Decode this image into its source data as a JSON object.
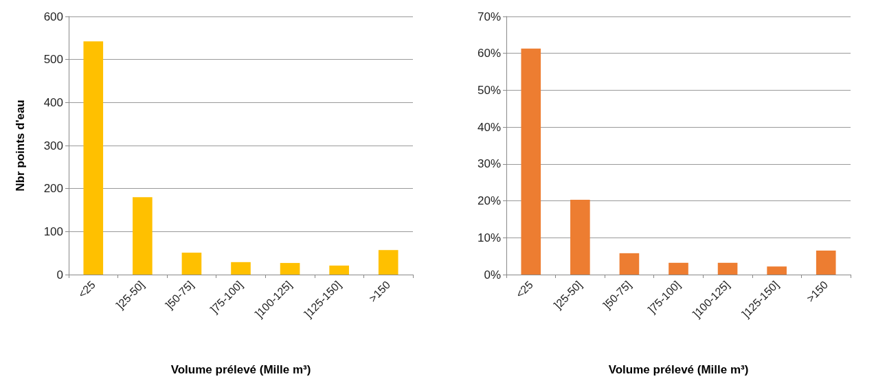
{
  "chart_data": [
    {
      "type": "bar",
      "xlabel": "Volume prélevé (Mille m³)",
      "ylabel": "Nbr points d'eau",
      "categories": [
        "<25",
        "]25-50]",
        "]50-75]",
        "]75-100]",
        "]100-125]",
        "]125-150]",
        ">150"
      ],
      "values": [
        542,
        180,
        51,
        29,
        27,
        21,
        57
      ],
      "color": "#ffc000",
      "ylim": [
        0,
        600
      ],
      "yticks": [
        0,
        100,
        200,
        300,
        400,
        500,
        600
      ],
      "grid": "y"
    },
    {
      "type": "bar",
      "xlabel": "Volume prélevé (Mille m³)",
      "categories": [
        "<25",
        "]25-50]",
        "]50-75]",
        "]75-100]",
        "]100-125]",
        "]125-150]",
        ">150"
      ],
      "values": [
        61.3,
        20.3,
        5.8,
        3.2,
        3.2,
        2.2,
        6.5
      ],
      "color": "#ed7d31",
      "ylim": [
        0,
        70
      ],
      "yticks": [
        {
          "value": 0,
          "label": "0%"
        },
        {
          "value": 10,
          "label": "10%"
        },
        {
          "value": 20,
          "label": "20%"
        },
        {
          "value": 30,
          "label": "30%"
        },
        {
          "value": 40,
          "label": "40%"
        },
        {
          "value": 50,
          "label": "50%"
        },
        {
          "value": 60,
          "label": "60%"
        },
        {
          "value": 70,
          "label": "70%"
        }
      ],
      "grid": "y"
    }
  ]
}
